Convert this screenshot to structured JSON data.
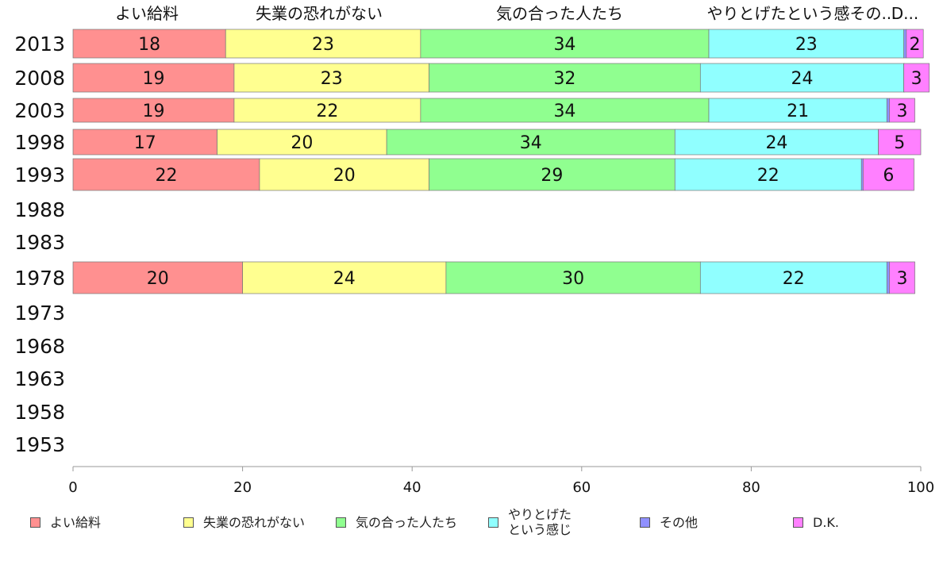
{
  "chart_data": {
    "type": "bar",
    "orientation": "horizontal",
    "stacked": true,
    "categories": [
      "2013",
      "2008",
      "2003",
      "1998",
      "1993",
      "1988",
      "1983",
      "1978",
      "1973",
      "1968",
      "1963",
      "1958",
      "1953"
    ],
    "series": [
      {
        "name": "よい給料",
        "legend_label": "よい給料",
        "color": "#ff9090",
        "values": [
          18,
          19,
          19,
          17,
          22,
          null,
          null,
          20,
          null,
          null,
          null,
          null,
          null
        ]
      },
      {
        "name": "失業の恐れがない",
        "legend_label": "失業の恐れがない",
        "color": "#ffff90",
        "values": [
          23,
          23,
          22,
          20,
          20,
          null,
          null,
          24,
          null,
          null,
          null,
          null,
          null
        ]
      },
      {
        "name": "気の合った人たち",
        "legend_label": "気の合った人たち",
        "color": "#90ff90",
        "values": [
          34,
          32,
          34,
          34,
          29,
          null,
          null,
          30,
          null,
          null,
          null,
          null,
          null
        ]
      },
      {
        "name": "やりとげたという感じ",
        "legend_label": "やりとげた\nという感じ",
        "color": "#90ffff",
        "values": [
          23,
          24,
          21,
          24,
          22,
          null,
          null,
          22,
          null,
          null,
          null,
          null,
          null
        ]
      },
      {
        "name": "その他",
        "legend_label": "その他",
        "color": "#9090ff",
        "values": [
          0.3,
          0,
          0.3,
          0,
          0.2,
          null,
          null,
          0.3,
          null,
          null,
          null,
          null,
          null
        ]
      },
      {
        "name": "D.K.",
        "legend_label": "D.K.",
        "color": "#ff80ff",
        "values": [
          2,
          3,
          3,
          5,
          6,
          null,
          null,
          3,
          null,
          null,
          null,
          null,
          null
        ]
      }
    ],
    "value_labels": [
      [
        "18",
        "23",
        "34",
        "23",
        "",
        "2"
      ],
      [
        "19",
        "23",
        "32",
        "24",
        "",
        "3"
      ],
      [
        "19",
        "22",
        "34",
        "21",
        "",
        "3"
      ],
      [
        "17",
        "20",
        "34",
        "24",
        "",
        "5"
      ],
      [
        "22",
        "20",
        "29",
        "22",
        "",
        "6"
      ],
      null,
      null,
      [
        "20",
        "24",
        "30",
        "22",
        "",
        "3"
      ],
      null,
      null,
      null,
      null,
      null
    ],
    "top_labels": [
      "よい給料",
      "失業の恐れがない",
      "気の合った人たち",
      "やりとげたという感その...",
      "D..."
    ],
    "xlim": [
      0,
      100
    ],
    "x_ticks": [
      "0",
      "20",
      "40",
      "60",
      "80",
      "100"
    ],
    "grid": false,
    "legend_position": "bottom",
    "title": "",
    "xlabel": "",
    "ylabel": ""
  }
}
